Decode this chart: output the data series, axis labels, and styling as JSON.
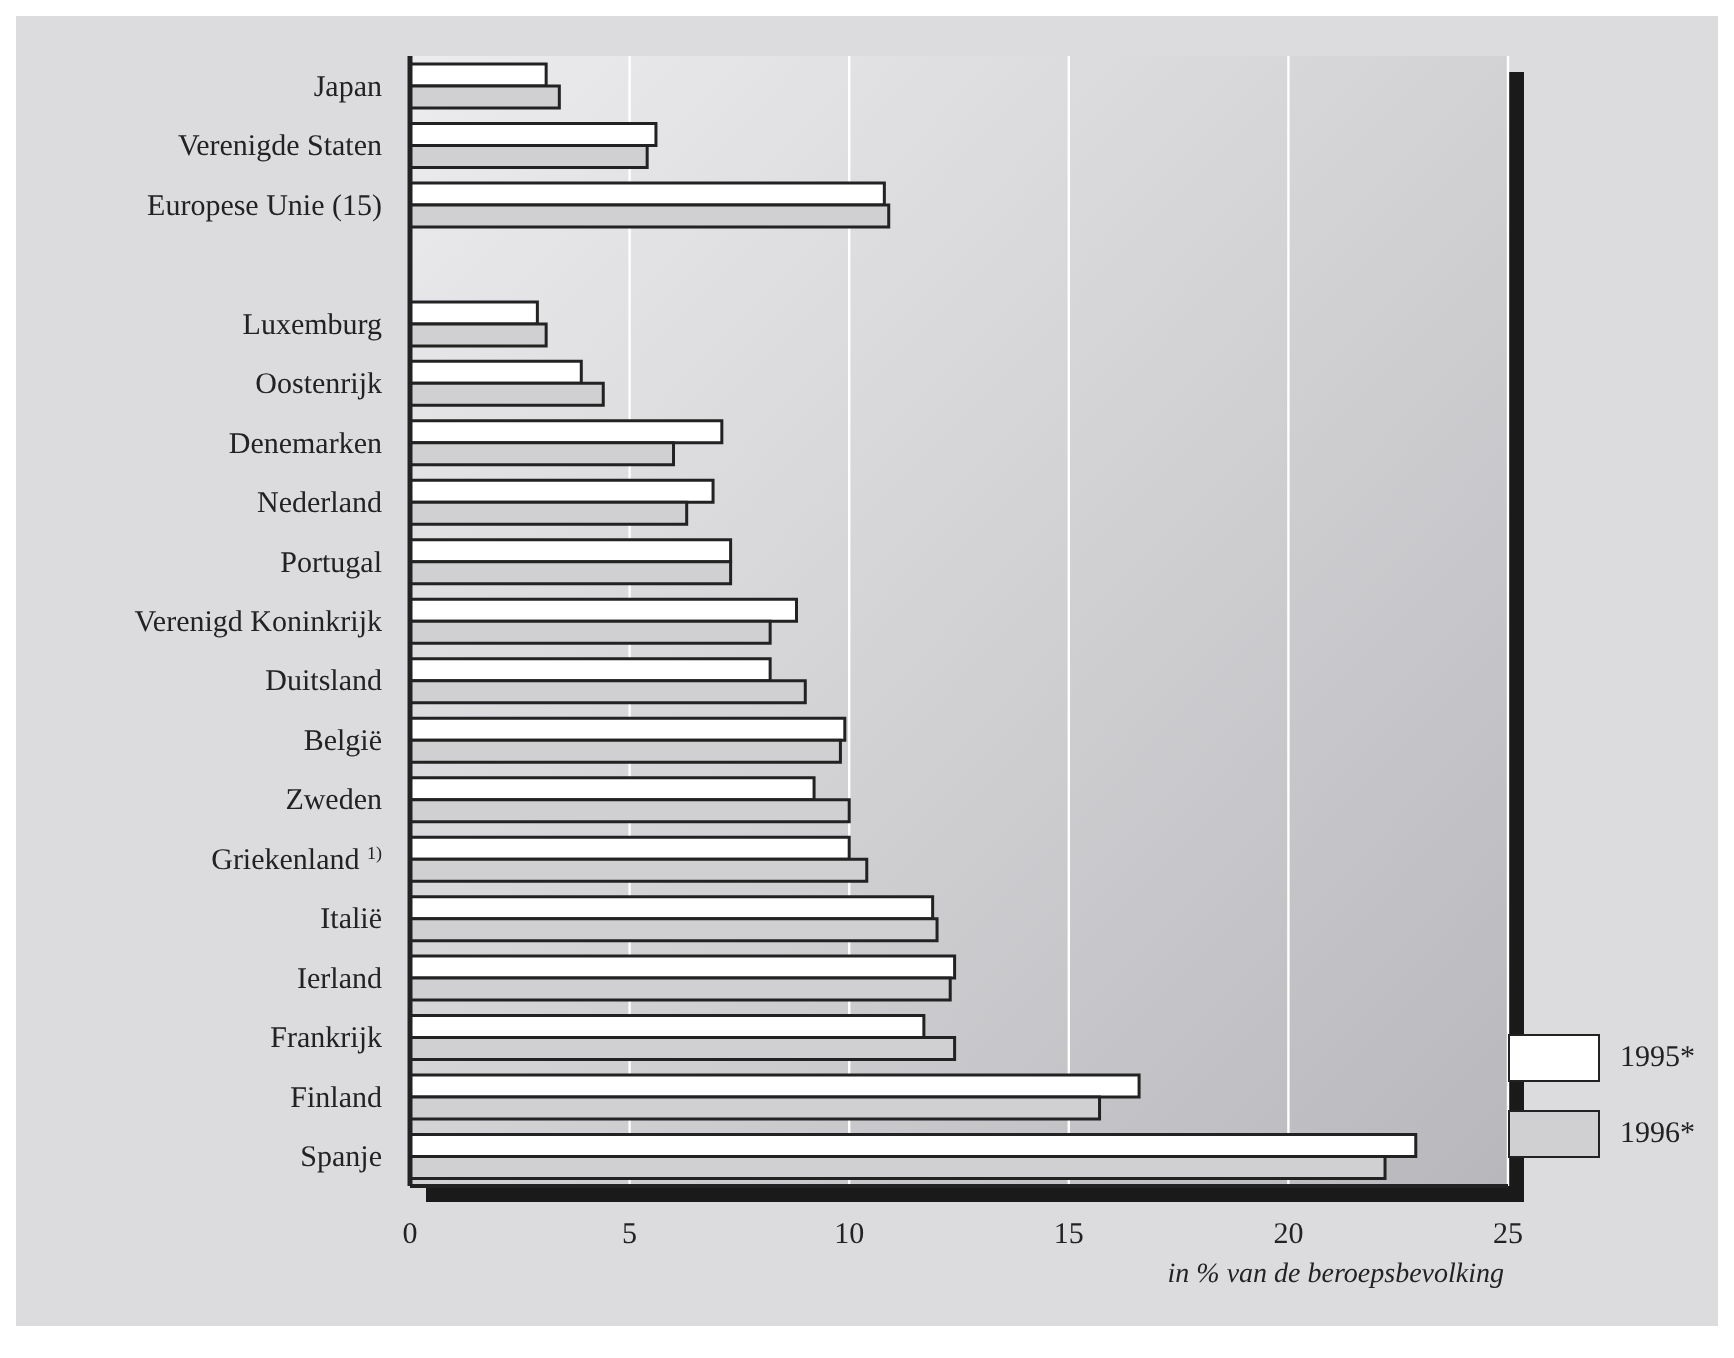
{
  "chart_data": {
    "type": "bar",
    "orientation": "horizontal",
    "xlabel": "in % van de beroepsbevolking",
    "categories": [
      "Japan",
      "Verenigde Staten",
      "Europese Unie (15)",
      null,
      "Luxemburg",
      "Oostenrijk",
      "Denemarken",
      "Nederland",
      "Portugal",
      "Verenigd Koninkrijk",
      "Duitsland",
      "België",
      "Zweden",
      "Griekenland $^{1)}$",
      "Italië",
      "Ierland",
      "Frankrijk",
      "Finland",
      "Spanje"
    ],
    "series": [
      {
        "name": "1995*",
        "color": "#ffffff",
        "values": [
          3.1,
          5.6,
          10.8,
          null,
          2.9,
          3.9,
          7.1,
          6.9,
          7.3,
          8.8,
          8.2,
          9.9,
          9.2,
          10.0,
          11.9,
          12.4,
          11.7,
          16.6,
          22.9
        ]
      },
      {
        "name": "1996*",
        "color": "#d0d0d2",
        "values": [
          3.4,
          5.4,
          10.9,
          null,
          3.1,
          4.4,
          6.0,
          6.3,
          7.3,
          8.2,
          9.0,
          9.8,
          10.0,
          10.4,
          12.0,
          12.3,
          12.4,
          15.7,
          22.2
        ]
      }
    ],
    "xlim": [
      0,
      25
    ],
    "xticks": [
      0,
      5,
      10,
      15,
      20,
      25
    ],
    "grid": "x",
    "legend": "bottom right"
  }
}
